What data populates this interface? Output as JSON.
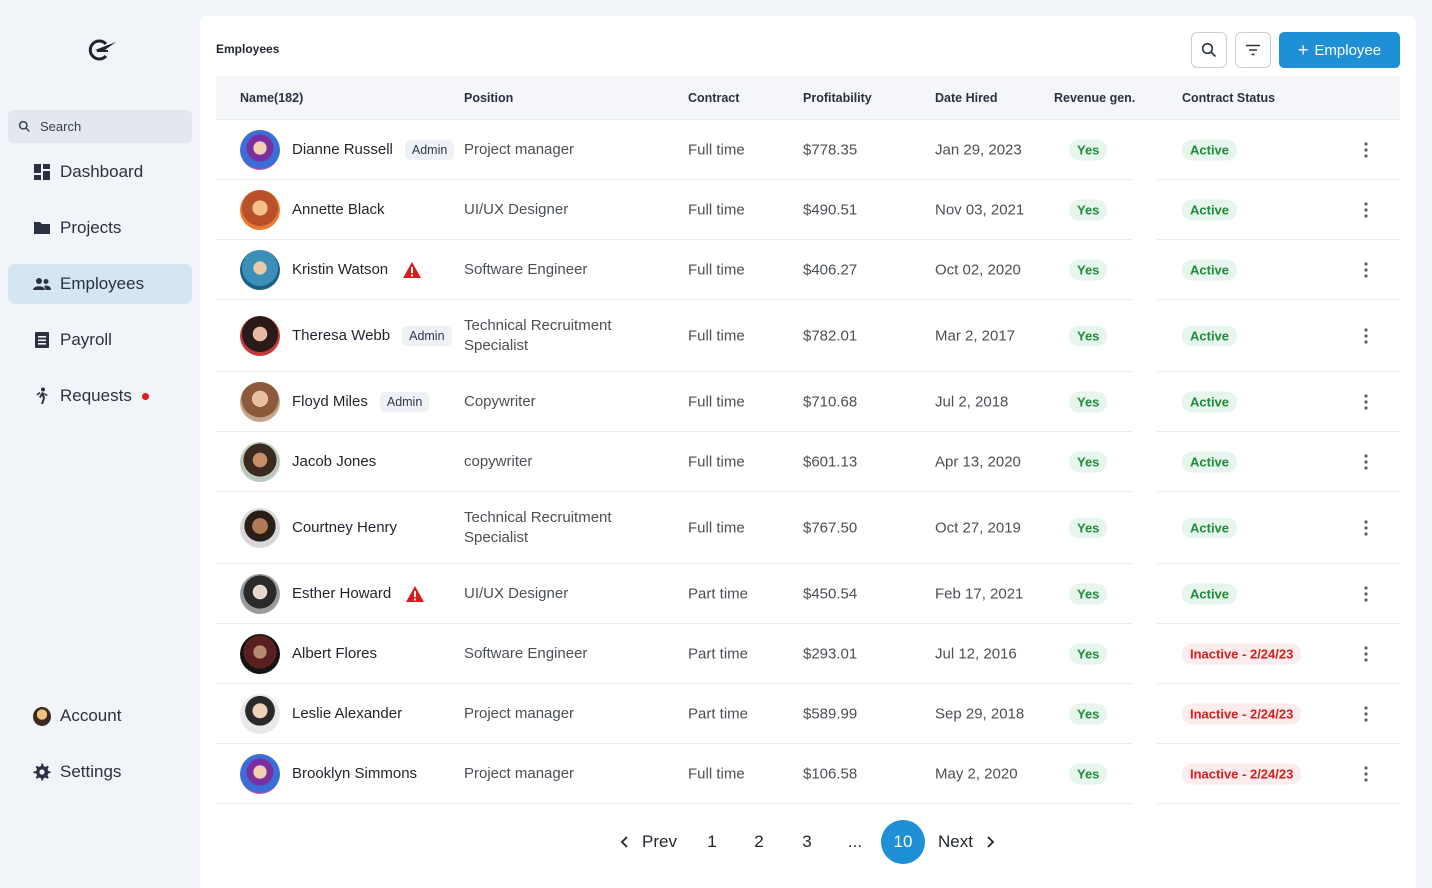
{
  "sidebar": {
    "search_placeholder": "Search",
    "nav": [
      {
        "label": "Dashboard",
        "icon": "dashboard-icon"
      },
      {
        "label": "Projects",
        "icon": "folder-icon"
      },
      {
        "label": "Employees",
        "icon": "people-icon",
        "active": true
      },
      {
        "label": "Payroll",
        "icon": "receipt-icon"
      },
      {
        "label": "Requests",
        "icon": "walking-person-icon",
        "notification": true
      }
    ],
    "bottom": [
      {
        "label": "Account",
        "icon": "avatar-icon"
      },
      {
        "label": "Settings",
        "icon": "gear-icon"
      }
    ]
  },
  "header": {
    "title": "Employees",
    "add_label": "Employee"
  },
  "table": {
    "columns": [
      "Name(182)",
      "Position",
      "Contract",
      "Profitability",
      "Date Hired",
      "Revenue gen.",
      "Contract Status"
    ],
    "rows": [
      {
        "name": "Dianne Russell",
        "tag": "Admin",
        "position": "Project manager",
        "contract": "Full time",
        "profit": "$778.35",
        "date": "Jan 29, 2023",
        "revenue": "Yes",
        "status": "Active"
      },
      {
        "name": "Annette Black",
        "position": "UI/UX Designer",
        "contract": "Full time",
        "profit": "$490.51",
        "date": "Nov 03, 2021",
        "revenue": "Yes",
        "status": "Active"
      },
      {
        "name": "Kristin Watson",
        "warning": true,
        "position": "Software Engineer",
        "contract": "Full time",
        "profit": "$406.27",
        "date": "Oct 02, 2020",
        "revenue": "Yes",
        "status": "Active"
      },
      {
        "name": "Theresa Webb",
        "tag": "Admin",
        "position": "Technical Recruitment Specialist",
        "contract": "Full time",
        "profit": "$782.01",
        "date": "Mar 2, 2017",
        "revenue": "Yes",
        "status": "Active"
      },
      {
        "name": "Floyd Miles",
        "tag": "Admin",
        "position": "Copywriter",
        "contract": "Full time",
        "profit": "$710.68",
        "date": "Jul 2, 2018",
        "revenue": "Yes",
        "status": "Active"
      },
      {
        "name": "Jacob Jones",
        "position": "copywriter",
        "contract": "Full time",
        "profit": "$601.13",
        "date": "Apr 13, 2020",
        "revenue": "Yes",
        "status": "Active"
      },
      {
        "name": "Courtney Henry",
        "position": "Technical Recruitment Specialist",
        "contract": "Full time",
        "profit": "$767.50",
        "date": "Oct 27, 2019",
        "revenue": "Yes",
        "status": "Active"
      },
      {
        "name": "Esther Howard",
        "warning": true,
        "position": "UI/UX Designer",
        "contract": "Part time",
        "profit": "$450.54",
        "date": "Feb 17, 2021",
        "revenue": "Yes",
        "status": "Active"
      },
      {
        "name": "Albert Flores",
        "position": "Software Engineer",
        "contract": "Part time",
        "profit": "$293.01",
        "date": "Jul 12, 2016",
        "revenue": "Yes",
        "status": "Inactive - 2/24/23"
      },
      {
        "name": "Leslie Alexander",
        "position": "Project manager",
        "contract": "Part time",
        "profit": "$589.99",
        "date": "Sep 29, 2018",
        "revenue": "Yes",
        "status": "Inactive - 2/24/23"
      },
      {
        "name": "Brooklyn Simmons",
        "position": "Project manager",
        "contract": "Full time",
        "profit": "$106.58",
        "date": "May 2, 2020",
        "revenue": "Yes",
        "status": "Inactive - 2/24/23"
      }
    ]
  },
  "pagination": {
    "prev": "Prev",
    "next": "Next",
    "pages": [
      "1",
      "2",
      "3",
      "...",
      "10"
    ],
    "current": "10"
  },
  "colors": {
    "accent": "#1f8fd6",
    "active_nav": "#d5e6f3",
    "green": "#1f8a3a",
    "red": "#d21f1f"
  }
}
